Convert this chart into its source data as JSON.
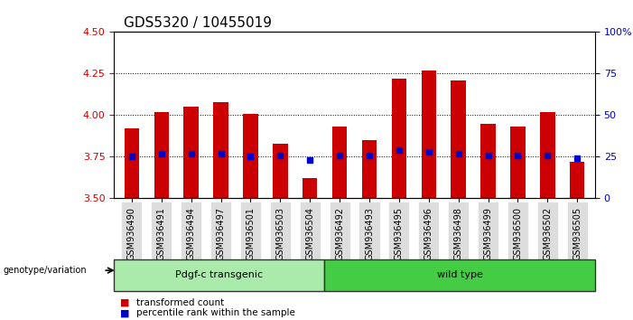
{
  "title": "GDS5320 / 10455019",
  "samples": [
    "GSM936490",
    "GSM936491",
    "GSM936494",
    "GSM936497",
    "GSM936501",
    "GSM936503",
    "GSM936504",
    "GSM936492",
    "GSM936493",
    "GSM936495",
    "GSM936496",
    "GSM936498",
    "GSM936499",
    "GSM936500",
    "GSM936502",
    "GSM936505"
  ],
  "transformed_count": [
    3.92,
    4.02,
    4.05,
    4.08,
    4.01,
    3.83,
    3.62,
    3.93,
    3.85,
    4.22,
    4.27,
    4.21,
    3.95,
    3.93,
    4.02,
    3.72
  ],
  "percentile_rank": [
    3.75,
    3.77,
    3.77,
    3.77,
    3.75,
    3.76,
    3.73,
    3.76,
    3.76,
    3.79,
    3.78,
    3.77,
    3.76,
    3.76,
    3.76,
    3.74
  ],
  "ylim": [
    3.5,
    4.5
  ],
  "yticks": [
    3.5,
    3.75,
    4.0,
    4.25,
    4.5
  ],
  "y2ticks": [
    0,
    25,
    50,
    75,
    100
  ],
  "y2labels": [
    "0",
    "25",
    "50",
    "75",
    "100%"
  ],
  "bar_bottom": 3.5,
  "bar_color": "#cc0000",
  "dot_color": "#0000cc",
  "group1_count": 7,
  "group1_label": "Pdgf-c transgenic",
  "group2_label": "wild type",
  "group1_color": "#aaeaaa",
  "group2_color": "#44cc44",
  "tick_bg_color": "#dddddd",
  "legend_red_label": "transformed count",
  "legend_blue_label": "percentile rank within the sample",
  "genotype_label": "genotype/variation",
  "ytick_color": "#cc0000",
  "y2tick_color": "#0000cc",
  "grid_color": "#000000",
  "title_fontsize": 11,
  "axis_fontsize": 8,
  "tick_label_fontsize": 7
}
